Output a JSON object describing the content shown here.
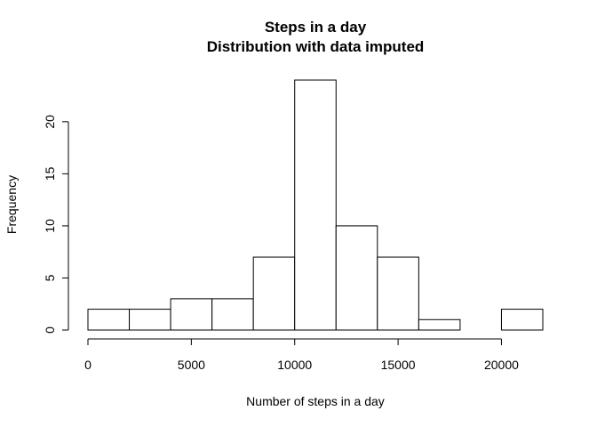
{
  "chart_data": {
    "type": "bar",
    "title": "Steps in a day",
    "subtitle": "Distribution with data imputed",
    "xlabel": "Number of steps in a day",
    "ylabel": "Frequency",
    "bins": [
      {
        "start": 0,
        "end": 2000,
        "count": 2
      },
      {
        "start": 2000,
        "end": 4000,
        "count": 2
      },
      {
        "start": 4000,
        "end": 6000,
        "count": 3
      },
      {
        "start": 6000,
        "end": 8000,
        "count": 3
      },
      {
        "start": 8000,
        "end": 10000,
        "count": 7
      },
      {
        "start": 10000,
        "end": 12000,
        "count": 24
      },
      {
        "start": 12000,
        "end": 14000,
        "count": 10
      },
      {
        "start": 14000,
        "end": 16000,
        "count": 7
      },
      {
        "start": 16000,
        "end": 18000,
        "count": 1
      },
      {
        "start": 18000,
        "end": 20000,
        "count": 0
      },
      {
        "start": 20000,
        "end": 22000,
        "count": 2
      }
    ],
    "xlim": [
      0,
      22000
    ],
    "ylim": [
      0,
      24
    ],
    "x_ticks": [
      {
        "value": 0,
        "label": "0"
      },
      {
        "value": 5000,
        "label": "5000"
      },
      {
        "value": 10000,
        "label": "10000"
      },
      {
        "value": 15000,
        "label": "15000"
      },
      {
        "value": 20000,
        "label": "20000"
      }
    ],
    "y_ticks": [
      {
        "value": 0,
        "label": "0"
      },
      {
        "value": 5,
        "label": "5"
      },
      {
        "value": 10,
        "label": "10"
      },
      {
        "value": 15,
        "label": "15"
      },
      {
        "value": 20,
        "label": "20"
      }
    ],
    "grid": false
  }
}
